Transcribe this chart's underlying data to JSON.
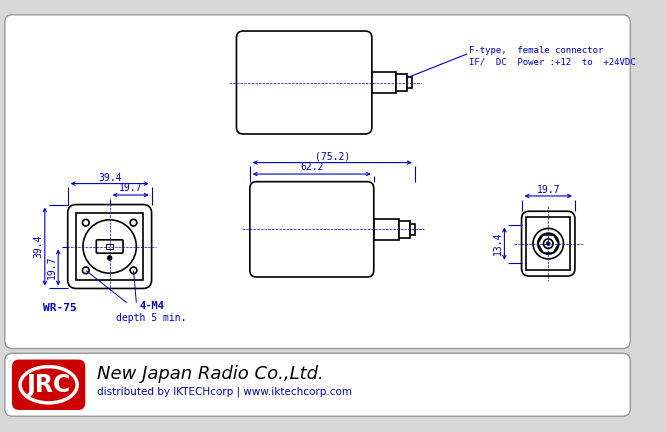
{
  "bg_color": "#e8e8e8",
  "line_color": "#000000",
  "dim_color": "#0000cc",
  "annotation_line1": "F-type,  female connector",
  "annotation_line2": "IF/  DC  Power :+12  to  +24VDC",
  "dim_394_h": "39.4",
  "dim_197_h": "19.7",
  "dim_394_v": "39.4",
  "dim_197_v": "19.7",
  "dim_752": "(75.2)",
  "dim_622": "62.2",
  "dim_134": "13.4",
  "dim_197_r": "19.7",
  "label_wr75": "WR-75",
  "label_4m4": "4-M4",
  "label_depth": "depth 5 min.",
  "footer_company": "New Japan Radio Co.,Ltd.",
  "footer_sub": "distributed by IKTECHcorp | www.iktechcorp.com",
  "footer_jrc": "JRC"
}
